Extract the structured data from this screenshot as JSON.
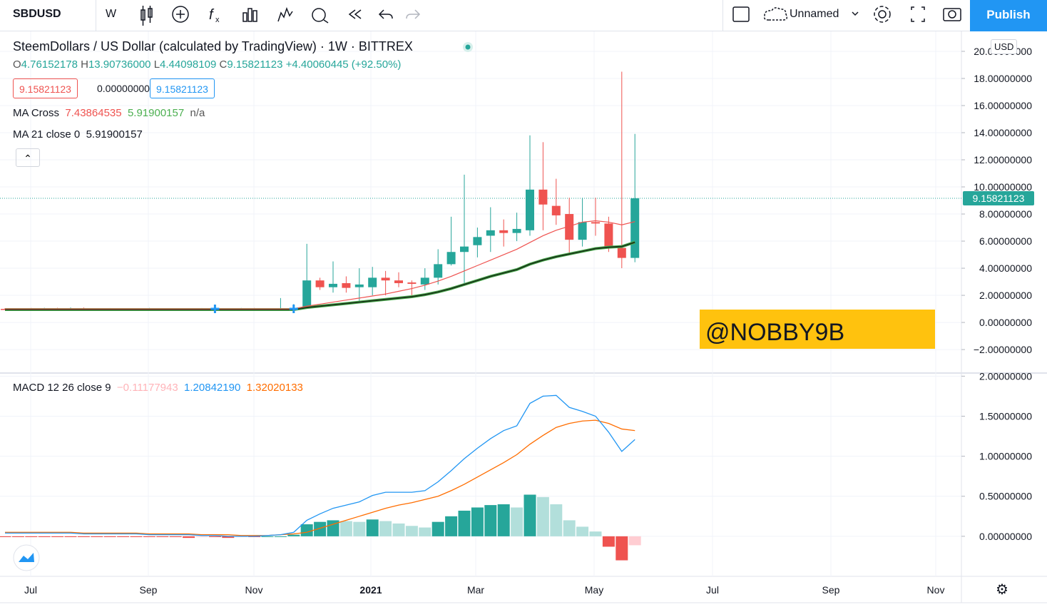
{
  "toolbar": {
    "symbol": "SBDUSD",
    "interval": "W",
    "layout_name": "Unnamed",
    "publish": "Publish"
  },
  "legend": {
    "title": "SteemDollars / US Dollar (calculated by TradingView) · 1W · BITTREX",
    "ohlc": [
      {
        "label": "O",
        "value": "4.76152178"
      },
      {
        "label": "H",
        "value": "13.90736000"
      },
      {
        "label": "L",
        "value": "4.44098109"
      },
      {
        "label": "C",
        "value": "9.15821123"
      }
    ],
    "change": "+4.40060445 (+92.50%)",
    "price_buttons": [
      "9.15821123",
      "0.00000000",
      "9.15821123"
    ],
    "ma_cross": {
      "name": "MA Cross",
      "values": [
        "7.43864535",
        "5.91900157",
        "n/a"
      ]
    },
    "ma21": {
      "name": "MA 21 close 0",
      "value": "5.91900157"
    }
  },
  "macd_legend": {
    "name": "MACD 12 26 close 9",
    "values": [
      "−0.11177943",
      "1.20842190",
      "1.32020133"
    ]
  },
  "watermark": "@NOBBY9B",
  "currency": "USD",
  "last_price_label": "9.15821123",
  "chart": {
    "candles": {
      "up_color": "#26a69a",
      "down_color": "#ef5350",
      "open": [
        1.0,
        0.98,
        1.02,
        1.0,
        1.03,
        0.99,
        1.05,
        1.0,
        0.98,
        1.01,
        1.0,
        0.99,
        1.02,
        1.0,
        0.98,
        1.0,
        1.01,
        0.99,
        1.0,
        1.02,
        0.97,
        1.0,
        1.0,
        1.05,
        3.1,
        2.6,
        2.9,
        2.6,
        2.6,
        3.3,
        3.1,
        2.95,
        2.8,
        3.3,
        4.3,
        5.2,
        5.7,
        6.4,
        6.8,
        6.6,
        6.8,
        9.8,
        8.6,
        8.0,
        6.1,
        7.4,
        7.3,
        5.5,
        4.76152178
      ],
      "high": [
        1.05,
        1.05,
        1.07,
        1.08,
        1.08,
        1.1,
        1.1,
        1.05,
        1.06,
        1.05,
        1.04,
        1.07,
        1.05,
        1.05,
        1.04,
        1.06,
        1.06,
        1.04,
        1.07,
        1.07,
        1.04,
        1.8,
        1.35,
        5.8,
        3.3,
        4.5,
        3.4,
        4.0,
        4.1,
        3.8,
        3.7,
        3.1,
        4.0,
        5.4,
        7.8,
        10.9,
        7.0,
        8.5,
        7.6,
        8.1,
        13.8,
        13.3,
        10.6,
        9.2,
        9.2,
        9.2,
        7.8,
        18.5,
        13.90736
      ],
      "low": [
        0.93,
        0.93,
        0.95,
        0.95,
        0.94,
        0.94,
        0.95,
        0.93,
        0.93,
        0.95,
        0.94,
        0.94,
        0.95,
        0.93,
        0.93,
        0.95,
        0.94,
        0.94,
        0.95,
        0.92,
        0.92,
        0.95,
        0.95,
        1.0,
        2.4,
        2.2,
        2.2,
        1.6,
        2.0,
        2.0,
        2.6,
        2.0,
        2.4,
        2.8,
        4.2,
        2.8,
        4.8,
        5.2,
        5.6,
        6.0,
        6.4,
        6.8,
        7.2,
        5.0,
        5.6,
        6.4,
        5.2,
        4.0,
        4.44098109
      ],
      "close": [
        0.98,
        1.02,
        1.0,
        1.03,
        0.99,
        1.05,
        1.0,
        0.98,
        1.01,
        1.0,
        0.99,
        1.02,
        1.0,
        0.98,
        1.0,
        1.01,
        0.99,
        1.0,
        1.02,
        0.97,
        1.0,
        1.0,
        1.05,
        3.1,
        2.6,
        2.85,
        2.55,
        2.8,
        3.3,
        3.1,
        2.9,
        2.85,
        3.3,
        4.3,
        5.2,
        5.6,
        6.3,
        6.8,
        6.6,
        6.9,
        9.8,
        8.7,
        7.9,
        6.1,
        7.4,
        7.3,
        5.5,
        4.76152178,
        9.15821123
      ]
    },
    "ma_fast": {
      "color": "#ef5350",
      "values": [
        1.0,
        1.0,
        1.0,
        1.0,
        1.0,
        1.0,
        1.0,
        1.0,
        1.0,
        1.0,
        1.0,
        1.0,
        1.0,
        1.0,
        1.0,
        1.0,
        1.0,
        1.0,
        1.0,
        1.0,
        1.0,
        1.0,
        1.0,
        1.2,
        1.35,
        1.5,
        1.65,
        1.8,
        1.95,
        2.1,
        2.3,
        2.5,
        2.75,
        3.05,
        3.4,
        3.8,
        4.2,
        4.6,
        5.0,
        5.4,
        5.9,
        6.4,
        6.8,
        7.1,
        7.4,
        7.5,
        7.4,
        7.2,
        7.43864535
      ]
    },
    "ma_slow": {
      "color": "#1b3a1b",
      "values": [
        0.95,
        0.95,
        0.95,
        0.95,
        0.95,
        0.95,
        0.95,
        0.95,
        0.95,
        0.95,
        0.95,
        0.95,
        0.95,
        0.95,
        0.95,
        0.95,
        0.95,
        0.95,
        0.95,
        0.95,
        0.95,
        0.95,
        0.95,
        1.1,
        1.2,
        1.3,
        1.4,
        1.5,
        1.6,
        1.7,
        1.8,
        1.9,
        2.05,
        2.25,
        2.5,
        2.8,
        3.1,
        3.4,
        3.65,
        3.9,
        4.3,
        4.6,
        4.85,
        5.05,
        5.25,
        5.45,
        5.55,
        5.6,
        5.91900157
      ]
    },
    "price_axis": {
      "ylim": [
        -3.68,
        21.42
      ],
      "yticks": [
        {
          "value": -2,
          "label": "−2.00000000"
        },
        {
          "value": 0,
          "label": "0.00000000"
        },
        {
          "value": 2,
          "label": "2.00000000"
        },
        {
          "value": 4,
          "label": "4.00000000"
        },
        {
          "value": 6,
          "label": "6.00000000"
        },
        {
          "value": 8,
          "label": "8.00000000"
        },
        {
          "value": 10,
          "label": "10.00000000"
        },
        {
          "value": 12,
          "label": "12.00000000"
        },
        {
          "value": 14,
          "label": "14.00000000"
        },
        {
          "value": 16,
          "label": "16.00000000"
        },
        {
          "value": 18,
          "label": "18.00000000"
        },
        {
          "value": 20,
          "label": "20.00000000"
        }
      ],
      "grid": true
    },
    "macd": {
      "ylim": [
        -0.5,
        2.03
      ],
      "yticks": [
        {
          "value": 0,
          "label": "0.00000000"
        },
        {
          "value": 0.5,
          "label": "0.50000000"
        },
        {
          "value": 1,
          "label": "1.00000000"
        },
        {
          "value": 1.5,
          "label": "1.50000000"
        },
        {
          "value": 2,
          "label": "2.00000000"
        }
      ],
      "macd_line": {
        "color": "#2196f3",
        "values": [
          0.04,
          0.04,
          0.04,
          0.04,
          0.04,
          0.04,
          0.03,
          0.03,
          0.03,
          0.03,
          0.03,
          0.02,
          0.02,
          0.02,
          0.02,
          0.01,
          0.01,
          0.0,
          0.0,
          0.0,
          0.01,
          0.02,
          0.05,
          0.2,
          0.28,
          0.35,
          0.39,
          0.43,
          0.51,
          0.55,
          0.55,
          0.55,
          0.57,
          0.68,
          0.82,
          0.97,
          1.1,
          1.22,
          1.32,
          1.38,
          1.66,
          1.75,
          1.76,
          1.61,
          1.56,
          1.5,
          1.3,
          1.06,
          1.2084219
        ]
      },
      "signal": {
        "color": "#ff6d00",
        "values": [
          0.05,
          0.05,
          0.05,
          0.05,
          0.05,
          0.05,
          0.04,
          0.04,
          0.04,
          0.04,
          0.04,
          0.03,
          0.03,
          0.03,
          0.03,
          0.02,
          0.02,
          0.02,
          0.01,
          0.01,
          0.01,
          0.02,
          0.03,
          0.05,
          0.1,
          0.15,
          0.2,
          0.25,
          0.3,
          0.35,
          0.39,
          0.42,
          0.46,
          0.5,
          0.57,
          0.65,
          0.74,
          0.83,
          0.92,
          1.02,
          1.15,
          1.26,
          1.36,
          1.41,
          1.44,
          1.45,
          1.41,
          1.34,
          1.32020133
        ]
      },
      "histogram": {
        "colors": [
          "#26a69a",
          "#b2dfdb",
          "#ef5350",
          "#ffcdd2"
        ],
        "values": [
          -0.01,
          -0.01,
          -0.01,
          -0.01,
          -0.01,
          -0.01,
          -0.01,
          -0.01,
          -0.01,
          -0.01,
          -0.01,
          -0.01,
          -0.01,
          -0.01,
          -0.02,
          -0.01,
          -0.01,
          -0.02,
          -0.01,
          -0.01,
          0.0,
          0.0,
          0.02,
          0.15,
          0.18,
          0.2,
          0.19,
          0.18,
          0.21,
          0.19,
          0.16,
          0.13,
          0.11,
          0.18,
          0.25,
          0.32,
          0.36,
          0.39,
          0.4,
          0.36,
          0.52,
          0.49,
          0.4,
          0.2,
          0.12,
          0.06,
          -0.13,
          -0.3,
          -0.11177943
        ]
      }
    },
    "time_axis": [
      "Jul",
      "Sep",
      "Nov",
      "2021",
      "Mar",
      "May",
      "Jul",
      "Sep",
      "Nov"
    ]
  }
}
